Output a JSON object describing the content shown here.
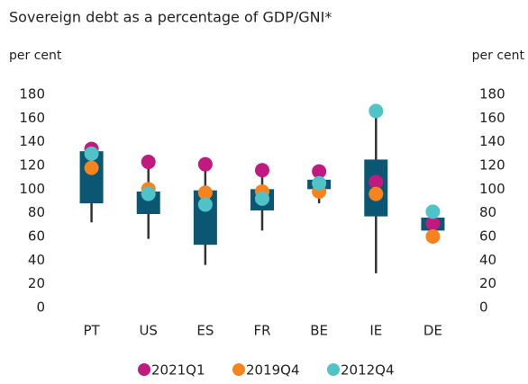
{
  "chart_data": {
    "type": "boxdot",
    "title": "Sovereign debt as a percentage of GDP/GNI*",
    "ylabel": "per cent",
    "y2label": "per cent",
    "categories": [
      "PT",
      "US",
      "ES",
      "FR",
      "BE",
      "IE",
      "DE"
    ],
    "low": [
      72,
      58,
      36,
      65,
      88,
      29,
      65
    ],
    "box_low": [
      88,
      79,
      53,
      82,
      100,
      77,
      65
    ],
    "box_high": [
      132,
      98,
      99,
      100,
      108,
      125,
      76
    ],
    "high": [
      134,
      123,
      121,
      116,
      115,
      166,
      81
    ],
    "box_color": "#0b5773",
    "whisker_color": "#333333",
    "series": [
      {
        "name": "2021Q1",
        "color": "#c0197f",
        "values": [
          134,
          123,
          121,
          116,
          115,
          106,
          71
        ]
      },
      {
        "name": "2019Q4",
        "color": "#f7831e",
        "values": [
          118,
          100,
          97,
          98,
          98,
          96,
          60
        ]
      },
      {
        "name": "2012Q4",
        "color": "#4fc3c7",
        "values": [
          130,
          96,
          87,
          92,
          105,
          166,
          81
        ]
      }
    ],
    "ylim": [
      0,
      180
    ],
    "yticks": [
      0,
      20,
      40,
      60,
      80,
      100,
      120,
      140,
      160,
      180
    ],
    "y2lim": [
      0,
      180
    ],
    "y2ticks": [
      0,
      20,
      40,
      60,
      80,
      100,
      120,
      140,
      160,
      180
    ],
    "legend": "bottom"
  }
}
